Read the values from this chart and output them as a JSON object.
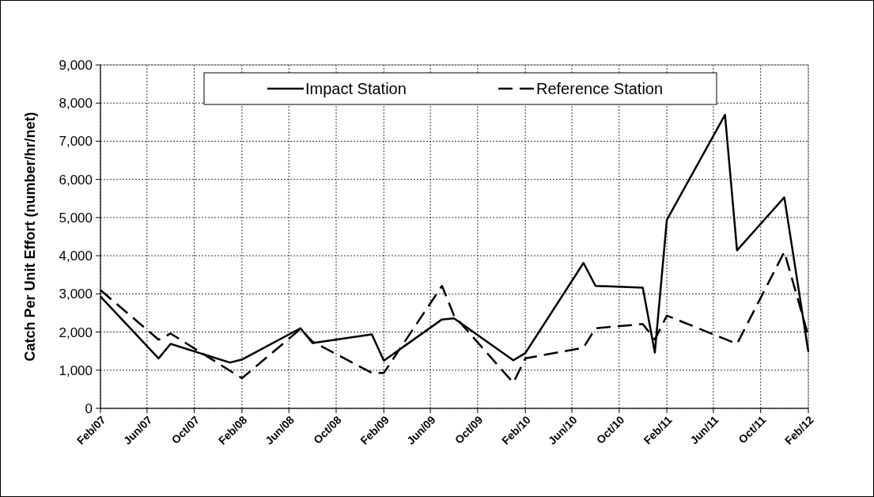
{
  "chart_data": {
    "type": "line",
    "ylabel": "Catch Per Unit Effort (number/hr/net)",
    "ylim": [
      0,
      9000
    ],
    "yticks": [
      {
        "value": 0,
        "label": "0"
      },
      {
        "value": 1000,
        "label": "1,000"
      },
      {
        "value": 2000,
        "label": "2,000"
      },
      {
        "value": 3000,
        "label": "3,000"
      },
      {
        "value": 4000,
        "label": "4,000"
      },
      {
        "value": 5000,
        "label": "5,000"
      },
      {
        "value": 6000,
        "label": "6,000"
      },
      {
        "value": 7000,
        "label": "7,000"
      },
      {
        "value": 8000,
        "label": "8,000"
      },
      {
        "value": 9000,
        "label": "9,000"
      }
    ],
    "xlim": [
      "2007-02",
      "2012-02"
    ],
    "xticks": [
      {
        "value": "2007-02",
        "label": "Feb/07"
      },
      {
        "value": "2007-06",
        "label": "Jun/07"
      },
      {
        "value": "2007-10",
        "label": "Oct/07"
      },
      {
        "value": "2008-02",
        "label": "Feb/08"
      },
      {
        "value": "2008-06",
        "label": "Jun/08"
      },
      {
        "value": "2008-10",
        "label": "Oct/08"
      },
      {
        "value": "2009-02",
        "label": "Feb/09"
      },
      {
        "value": "2009-06",
        "label": "Jun/09"
      },
      {
        "value": "2009-10",
        "label": "Oct/09"
      },
      {
        "value": "2010-02",
        "label": "Feb/10"
      },
      {
        "value": "2010-06",
        "label": "Jun/10"
      },
      {
        "value": "2010-10",
        "label": "Oct/10"
      },
      {
        "value": "2011-02",
        "label": "Feb/11"
      },
      {
        "value": "2011-06",
        "label": "Jun/11"
      },
      {
        "value": "2011-10",
        "label": "Oct/11"
      },
      {
        "value": "2012-02",
        "label": "Feb/12"
      }
    ],
    "grid": true,
    "legend": "top",
    "series": [
      {
        "name": "Impact Station",
        "color": "#000000",
        "line_style": "solid",
        "x": [
          "2007-02",
          "2007-07",
          "2007-08",
          "2008-01",
          "2008-02",
          "2008-07",
          "2008-08",
          "2009-01",
          "2009-02",
          "2009-07",
          "2009-08",
          "2010-01",
          "2010-02",
          "2010-07",
          "2010-08",
          "2010-12",
          "2011-01",
          "2011-02",
          "2011-07",
          "2011-08",
          "2011-12",
          "2012-02"
        ],
        "values": [
          2930,
          1310,
          1690,
          1200,
          1280,
          2100,
          1710,
          1940,
          1250,
          2330,
          2360,
          1260,
          1450,
          3810,
          3210,
          3160,
          1460,
          4940,
          7690,
          4140,
          5530,
          1480
        ]
      },
      {
        "name": "Reference Station",
        "color": "#000000",
        "line_style": "dashed",
        "x": [
          "2007-02",
          "2007-07",
          "2007-08",
          "2008-02",
          "2008-07",
          "2008-08",
          "2009-01",
          "2009-02",
          "2009-07",
          "2009-08",
          "2010-01",
          "2010-02",
          "2010-07",
          "2010-08",
          "2010-12",
          "2011-01",
          "2011-02",
          "2011-08",
          "2011-12",
          "2012-02"
        ],
        "values": [
          3100,
          1800,
          1960,
          790,
          2080,
          1750,
          930,
          930,
          3210,
          2430,
          670,
          1310,
          1590,
          2100,
          2210,
          1800,
          2430,
          1690,
          4100,
          1900
        ]
      }
    ]
  }
}
